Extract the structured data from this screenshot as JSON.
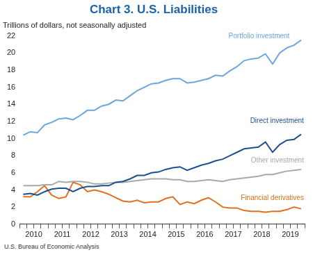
{
  "chart_data": {
    "type": "line",
    "title": "Chart 3. U.S. Liabilities",
    "subtitle": "Trillions of dollars, not seasonally adjusted",
    "source": "U.S. Bureau of Economic Analysis",
    "categories": [
      null,
      "2010",
      null,
      null,
      null,
      "2011",
      null,
      null,
      null,
      "2012",
      null,
      null,
      null,
      "2013",
      null,
      null,
      null,
      "2014",
      null,
      null,
      null,
      "2015",
      null,
      null,
      null,
      "2016",
      null,
      null,
      null,
      "2017",
      null,
      null,
      null,
      "2018",
      null,
      null,
      null,
      "2019",
      null,
      null
    ],
    "series": [
      {
        "name": "Portfolio investment",
        "color": "#6aa6dc",
        "values": [
          10.4,
          10.8,
          10.7,
          11.6,
          11.9,
          12.3,
          12.4,
          12.2,
          12.7,
          13.3,
          13.3,
          13.8,
          14.0,
          14.5,
          14.4,
          15.0,
          15.6,
          16.0,
          16.4,
          16.5,
          16.8,
          17.0,
          17.0,
          16.5,
          16.6,
          16.8,
          17.0,
          17.4,
          17.3,
          17.9,
          18.4,
          19.1,
          19.3,
          19.4,
          19.9,
          18.7,
          20.0,
          20.6,
          20.9,
          21.5
        ]
      },
      {
        "name": "Direct investment",
        "color": "#1c4f8f",
        "values": [
          3.5,
          3.6,
          3.4,
          3.8,
          4.1,
          4.2,
          4.2,
          3.8,
          4.2,
          4.4,
          4.4,
          4.5,
          4.5,
          4.9,
          5.0,
          5.3,
          5.7,
          5.7,
          6.0,
          6.1,
          6.4,
          6.6,
          6.7,
          6.3,
          6.6,
          6.9,
          7.1,
          7.4,
          7.6,
          8.0,
          8.4,
          8.8,
          8.9,
          9.0,
          9.6,
          8.4,
          9.3,
          9.8,
          9.9,
          10.5
        ]
      },
      {
        "name": "Other investment",
        "color": "#a9a9a9",
        "values": [
          4.5,
          4.5,
          4.5,
          4.6,
          4.6,
          5.0,
          4.9,
          5.0,
          5.0,
          4.9,
          4.7,
          4.7,
          4.8,
          4.9,
          4.9,
          5.0,
          5.1,
          5.2,
          5.3,
          5.3,
          5.3,
          5.2,
          5.2,
          5.0,
          5.0,
          5.1,
          5.2,
          5.1,
          5.0,
          5.2,
          5.3,
          5.4,
          5.5,
          5.6,
          5.8,
          5.8,
          6.0,
          6.2,
          6.3,
          6.4
        ]
      },
      {
        "name": "Financial derivatives",
        "color": "#e0701f",
        "values": [
          3.2,
          3.2,
          3.8,
          4.5,
          3.4,
          3.0,
          3.2,
          4.9,
          4.6,
          3.8,
          4.0,
          3.8,
          3.5,
          3.1,
          2.7,
          2.6,
          2.8,
          2.5,
          2.6,
          2.6,
          3.0,
          3.2,
          2.3,
          2.6,
          2.4,
          2.8,
          3.1,
          2.6,
          2.0,
          1.9,
          1.9,
          1.6,
          1.5,
          1.5,
          1.4,
          1.5,
          1.5,
          1.7,
          2.0,
          1.8
        ]
      }
    ],
    "ylim": [
      0,
      22
    ],
    "yticks": [
      0,
      2,
      4,
      6,
      8,
      10,
      12,
      14,
      16,
      18,
      20,
      22
    ],
    "grid": false
  }
}
